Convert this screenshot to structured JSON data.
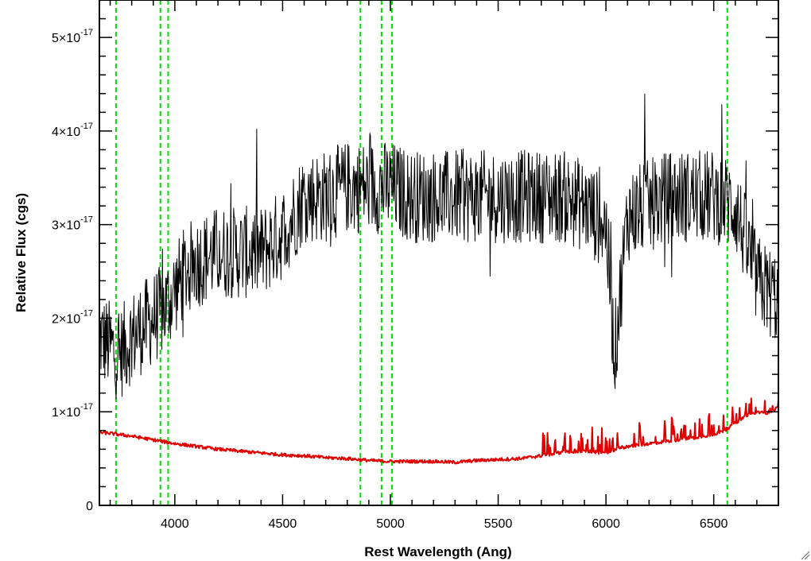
{
  "chart_data": {
    "type": "line",
    "title": "",
    "xlabel": "Rest Wavelength (Ang)",
    "ylabel": "Relative Flux (cgs)",
    "xlim": [
      3650,
      6800
    ],
    "ylim": [
      0,
      5.4e-17
    ],
    "x_ticks": [
      4000,
      4500,
      5000,
      5500,
      6000,
      6500
    ],
    "x_tick_labels": [
      "4000",
      "4500",
      "5000",
      "5500",
      "6000",
      "6500"
    ],
    "y_ticks": [
      0,
      1e-17,
      2e-17,
      3e-17,
      4e-17,
      5e-17
    ],
    "y_tick_labels": [
      {
        "mantissa": "0",
        "exponent": ""
      },
      {
        "mantissa": "1×10",
        "exponent": "-17"
      },
      {
        "mantissa": "2×10",
        "exponent": "-17"
      },
      {
        "mantissa": "3×10",
        "exponent": "-17"
      },
      {
        "mantissa": "4×10",
        "exponent": "-17"
      },
      {
        "mantissa": "5×10",
        "exponent": "-17"
      }
    ],
    "grid": false,
    "legend": "none",
    "colors": {
      "observed": "#000000",
      "model": "#e00000",
      "lines": "#00dd00",
      "axes": "#000000"
    },
    "marked_lines": [
      3727,
      3933,
      3969,
      4861,
      4959,
      5007,
      6563
    ],
    "series": [
      {
        "color": "#000000",
        "x": [
          3650,
          3700,
          3740,
          3800,
          3850,
          3900,
          3950,
          4000,
          4050,
          4100,
          4200,
          4300,
          4400,
          4500,
          4550,
          4600,
          4650,
          4700,
          4800,
          4900,
          5000,
          5100,
          5200,
          5300,
          5400,
          5500,
          5600,
          5700,
          5800,
          5900,
          6000,
          6040,
          6100,
          6200,
          6300,
          6400,
          6500,
          6600,
          6650,
          6700,
          6750,
          6800
        ],
        "y": [
          1.8e-17,
          1.7e-17,
          1.6e-17,
          1.8e-17,
          1.9e-17,
          2e-17,
          2.1e-17,
          2.3e-17,
          2.5e-17,
          2.6e-17,
          2.7e-17,
          2.7e-17,
          2.7e-17,
          2.9e-17,
          3.1e-17,
          3.3e-17,
          3.3e-17,
          3.3e-17,
          3.4e-17,
          3.4e-17,
          3.4e-17,
          3.3e-17,
          3.3e-17,
          3.3e-17,
          3.3e-17,
          3.3e-17,
          3.3e-17,
          3.3e-17,
          3.3e-17,
          3.2e-17,
          3e-17,
          1.6e-17,
          3.1e-17,
          3.2e-17,
          3.3e-17,
          3.3e-17,
          3.3e-17,
          3.2e-17,
          2.8e-17,
          2.4e-17,
          2.3e-17,
          2.2e-17
        ]
      },
      {
        "color": "#e00000",
        "x": [
          3650,
          3700,
          3800,
          3900,
          4000,
          4100,
          4200,
          4300,
          4400,
          4500,
          4600,
          4700,
          4800,
          4900,
          5000,
          5100,
          5200,
          5300,
          5400,
          5500,
          5600,
          5700,
          5800,
          5900,
          6000,
          6100,
          6200,
          6300,
          6400,
          6500,
          6550,
          6600,
          6650,
          6700,
          6750,
          6800
        ],
        "y": [
          7.8e-18,
          7.7e-18,
          7.4e-18,
          7e-18,
          6.6e-18,
          6.3e-18,
          6e-18,
          5.8e-18,
          5.6e-18,
          5.4e-18,
          5.3e-18,
          5.1e-18,
          5e-18,
          4.8e-18,
          4.7e-18,
          4.7e-18,
          4.7e-18,
          4.6e-18,
          4.8e-18,
          4.9e-18,
          5e-18,
          5.3e-18,
          5.7e-18,
          5.8e-18,
          5.6e-18,
          6.3e-18,
          6.6e-18,
          6.9e-18,
          7.2e-18,
          7.6e-18,
          8e-18,
          8.8e-18,
          9.6e-18,
          9.9e-18,
          9.9e-18,
          1.05e-17
        ]
      }
    ]
  }
}
